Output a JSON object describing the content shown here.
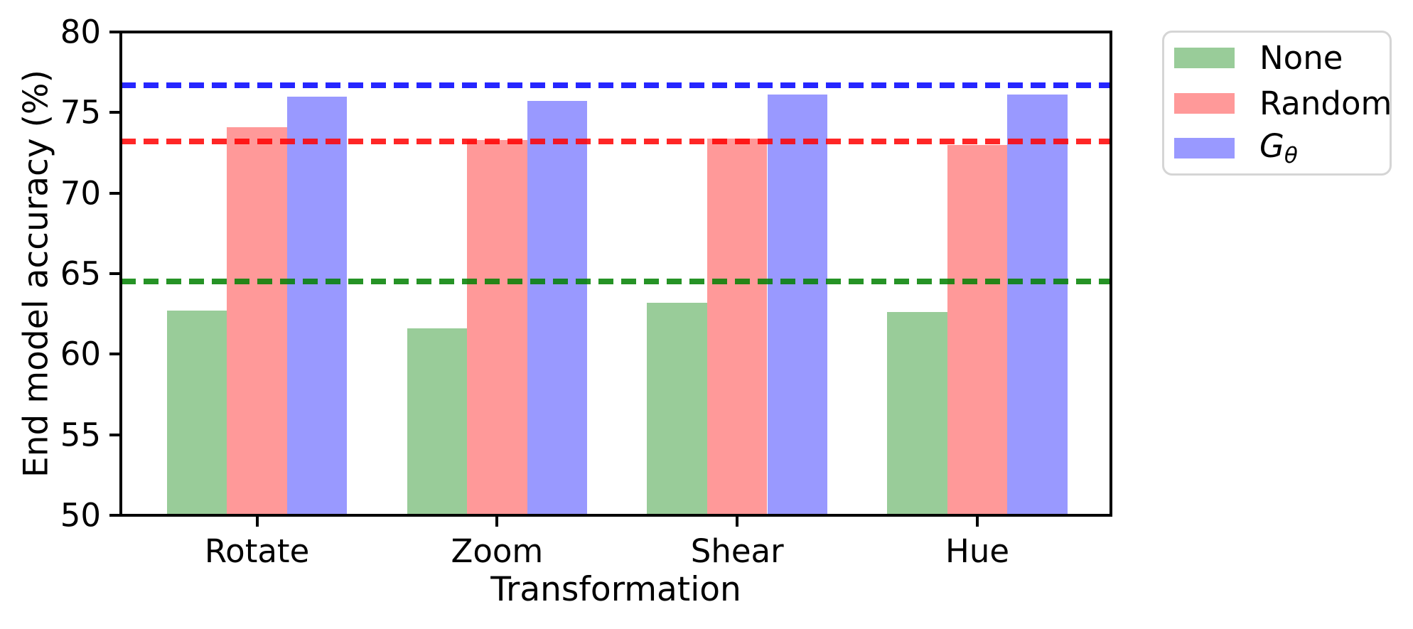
{
  "chart_data": {
    "type": "bar",
    "title": "",
    "xlabel": "Transformation",
    "ylabel": "End model accuracy (%)",
    "ylim": [
      50,
      80
    ],
    "yticks": [
      50,
      55,
      60,
      65,
      70,
      75,
      80
    ],
    "grid": false,
    "categories": [
      "Rotate",
      "Zoom",
      "Shear",
      "Hue"
    ],
    "series": [
      {
        "name": "None",
        "color": "#99cc99",
        "values": [
          62.7,
          61.6,
          63.2,
          62.6
        ]
      },
      {
        "name": "Random",
        "color": "#ff9999",
        "values": [
          74.1,
          73.3,
          73.4,
          73.0
        ]
      },
      {
        "name": "Gθ",
        "color": "#9999ff",
        "values": [
          76.0,
          75.7,
          76.1,
          76.1
        ]
      }
    ],
    "hlines": [
      {
        "name": "None baseline",
        "value": 64.5,
        "color": "#008000"
      },
      {
        "name": "Random baseline",
        "value": 73.2,
        "color": "#ff0000"
      },
      {
        "name": "Gθ baseline",
        "value": 76.7,
        "color": "#0000ff"
      }
    ],
    "legend": {
      "position": "outside upper right",
      "items": [
        {
          "label": "None",
          "color": "#99cc99"
        },
        {
          "label": "Random",
          "color": "#ff9999"
        },
        {
          "label": "G",
          "sub": "θ",
          "italic": true,
          "color": "#9999ff"
        }
      ]
    }
  }
}
